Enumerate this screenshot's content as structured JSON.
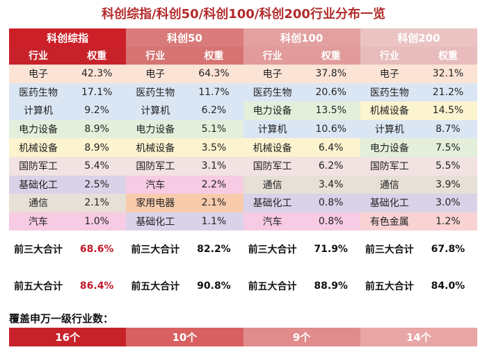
{
  "title": "科创综指/科创50/科创100/科创200行业分布一览",
  "groups": [
    {
      "name": "科创综指",
      "col_industry": "行业",
      "col_weight": "权重"
    },
    {
      "name": "科创50",
      "col_industry": "行业",
      "col_weight": "权重"
    },
    {
      "name": "科创100",
      "col_industry": "行业",
      "col_weight": "权重"
    },
    {
      "name": "科创200",
      "col_industry": "行业",
      "col_weight": "权重"
    }
  ],
  "rows": [
    [
      [
        "电子",
        "42.3%"
      ],
      [
        "电子",
        "64.3%"
      ],
      [
        "电子",
        "37.8%"
      ],
      [
        "电子",
        "32.1%"
      ]
    ],
    [
      [
        "医药生物",
        "17.1%"
      ],
      [
        "医药生物",
        "11.7%"
      ],
      [
        "医药生物",
        "20.6%"
      ],
      [
        "医药生物",
        "21.2%"
      ]
    ],
    [
      [
        "计算机",
        "9.2%"
      ],
      [
        "计算机",
        "6.2%"
      ],
      [
        "电力设备",
        "13.5%"
      ],
      [
        "机械设备",
        "14.5%"
      ]
    ],
    [
      [
        "电力设备",
        "8.9%"
      ],
      [
        "电力设备",
        "5.1%"
      ],
      [
        "计算机",
        "10.6%"
      ],
      [
        "计算机",
        "8.7%"
      ]
    ],
    [
      [
        "机械设备",
        "8.9%"
      ],
      [
        "机械设备",
        "3.5%"
      ],
      [
        "机械设备",
        "6.4%"
      ],
      [
        "电力设备",
        "7.5%"
      ]
    ],
    [
      [
        "国防军工",
        "5.4%"
      ],
      [
        "国防军工",
        "3.1%"
      ],
      [
        "国防军工",
        "6.2%"
      ],
      [
        "国防军工",
        "5.5%"
      ]
    ],
    [
      [
        "基础化工",
        "2.5%"
      ],
      [
        "汽车",
        "2.2%"
      ],
      [
        "通信",
        "3.4%"
      ],
      [
        "通信",
        "3.9%"
      ]
    ],
    [
      [
        "通信",
        "2.1%"
      ],
      [
        "家用电器",
        "2.1%"
      ],
      [
        "基础化工",
        "0.8%"
      ],
      [
        "基础化工",
        "3.0%"
      ]
    ],
    [
      [
        "汽车",
        "1.0%"
      ],
      [
        "基础化工",
        "1.1%"
      ],
      [
        "汽车",
        "0.8%"
      ],
      [
        "有色金属",
        "1.2%"
      ]
    ]
  ],
  "industry_colors": {
    "电子": "#fbe3d6",
    "医药生物": "#dbe6f4",
    "计算机": "#dbe6f4",
    "电力设备": "#e3efdb",
    "机械设备": "#fcf3cf",
    "国防军工": "#f2e2e2",
    "基础化工": "#d9d2e8",
    "汽车": "#f7cbe3",
    "通信": "#e6e0d6",
    "家用电器": "#f8cbad",
    "有色金属": "#f9d3d3"
  },
  "summary": [
    {
      "label": "前三大合计",
      "values": [
        "68.6%",
        "82.2%",
        "71.9%",
        "67.8%"
      ]
    },
    {
      "label": "前五大合计",
      "values": [
        "86.4%",
        "90.8%",
        "88.9%",
        "84.0%"
      ]
    }
  ],
  "highlight_color": "#c0182a",
  "coverage": {
    "title": "覆盖申万一级行业数：",
    "values": [
      "16个",
      "10个",
      "9个",
      "14个"
    ],
    "colors": [
      "#c7222a",
      "#d96060",
      "#e08c8c",
      "#e8a6a6"
    ]
  }
}
